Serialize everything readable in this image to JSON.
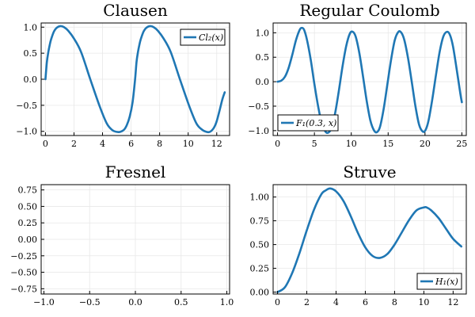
{
  "style": {
    "line_color": "#1f77b4"
  },
  "chart_data": [
    {
      "id": "clausen",
      "type": "line",
      "title": "Clausen",
      "xlim": [
        -0.3,
        12.9
      ],
      "ylim": [
        -1.08,
        1.08
      ],
      "xticks": [
        0,
        2,
        4,
        6,
        8,
        10,
        12
      ],
      "xtick_labels": [
        "0",
        "2",
        "4",
        "6",
        "8",
        "10",
        "12"
      ],
      "yticks": [
        -1.0,
        -0.5,
        0.0,
        0.5,
        1.0
      ],
      "ytick_labels": [
        "−1.0",
        "−0.5",
        "0.0",
        "0.5",
        "1.0"
      ],
      "legend": "top-right",
      "grid": true,
      "series": [
        {
          "name": "Cl₂(x)",
          "x": [
            0.0,
            0.1,
            0.2,
            0.3,
            0.4,
            0.6,
            0.8,
            1.05,
            1.3,
            1.6,
            2.0,
            2.5,
            3.14,
            3.8,
            4.3,
            4.7,
            5.0,
            5.24,
            5.5,
            5.7,
            5.9,
            6.1,
            6.28,
            6.38,
            6.48,
            6.58,
            6.68,
            6.88,
            7.08,
            7.33,
            7.58,
            7.88,
            8.28,
            8.78,
            9.42,
            10.08,
            10.58,
            10.98,
            11.28,
            11.52,
            11.78,
            11.98,
            12.18,
            12.4,
            12.56
          ],
          "y": [
            0.0,
            0.33,
            0.52,
            0.66,
            0.77,
            0.92,
            0.99,
            1.02,
            1.0,
            0.93,
            0.78,
            0.52,
            0.0,
            -0.52,
            -0.85,
            -0.98,
            -1.01,
            -1.01,
            -0.97,
            -0.88,
            -0.72,
            -0.45,
            0.0,
            0.33,
            0.52,
            0.66,
            0.77,
            0.92,
            0.99,
            1.02,
            1.0,
            0.93,
            0.78,
            0.52,
            0.0,
            -0.52,
            -0.85,
            -0.97,
            -1.01,
            -1.01,
            -0.94,
            -0.82,
            -0.62,
            -0.38,
            -0.25
          ]
        }
      ]
    },
    {
      "id": "coulomb",
      "type": "line",
      "title": "Regular Coulomb",
      "xlim": [
        -0.6,
        25.6
      ],
      "ylim": [
        -1.1,
        1.2
      ],
      "xticks": [
        0,
        5,
        10,
        15,
        20,
        25
      ],
      "xtick_labels": [
        "0",
        "5",
        "10",
        "15",
        "20",
        "25"
      ],
      "yticks": [
        -1.0,
        -0.5,
        0.0,
        0.5,
        1.0
      ],
      "ytick_labels": [
        "−1.0",
        "−0.5",
        "0.0",
        "0.5",
        "1.0"
      ],
      "legend": "bottom-left",
      "grid": true,
      "series": [
        {
          "name": "F₁(0.3, x)",
          "x": [
            0,
            0.5,
            1.0,
            1.5,
            2.0,
            2.5,
            3.0,
            3.3,
            3.6,
            4.0,
            4.5,
            5.0,
            5.5,
            6.0,
            6.5,
            6.9,
            7.3,
            7.8,
            8.3,
            8.8,
            9.3,
            9.8,
            10.2,
            10.6,
            11.1,
            11.6,
            12.1,
            12.6,
            13.1,
            13.5,
            13.9,
            14.4,
            14.9,
            15.4,
            15.9,
            16.4,
            16.8,
            17.2,
            17.7,
            18.2,
            18.7,
            19.2,
            19.7,
            20.1,
            20.5,
            21.0,
            21.5,
            22.0,
            22.5,
            23.0,
            23.4,
            23.8,
            24.3,
            24.8,
            25.0
          ],
          "y": [
            0.0,
            0.02,
            0.1,
            0.28,
            0.55,
            0.85,
            1.06,
            1.1,
            1.06,
            0.85,
            0.45,
            -0.05,
            -0.5,
            -0.85,
            -1.02,
            -1.04,
            -0.95,
            -0.65,
            -0.2,
            0.3,
            0.72,
            0.98,
            1.02,
            0.92,
            0.58,
            0.1,
            -0.4,
            -0.8,
            -1.0,
            -1.03,
            -0.92,
            -0.55,
            -0.05,
            0.45,
            0.85,
            1.02,
            1.0,
            0.85,
            0.48,
            0.0,
            -0.5,
            -0.88,
            -1.02,
            -0.98,
            -0.78,
            -0.35,
            0.15,
            0.62,
            0.93,
            1.02,
            0.95,
            0.72,
            0.25,
            -0.25,
            -0.42
          ]
        }
      ]
    },
    {
      "id": "fresnel",
      "type": "line",
      "title": "Fresnel",
      "xlim": [
        -1.03,
        1.03
      ],
      "ylim": [
        -0.83,
        0.83
      ],
      "xticks": [
        -1.0,
        -0.5,
        0.0,
        0.5,
        1.0
      ],
      "xtick_labels": [
        "−1.0",
        "−0.5",
        "0.0",
        "0.5",
        "1.0"
      ],
      "yticks": [
        -0.75,
        -0.5,
        -0.25,
        0.0,
        0.25,
        0.5,
        0.75
      ],
      "ytick_labels": [
        "−0.75",
        "−0.50",
        "−0.25",
        "0.00",
        "0.25",
        "0.50",
        "0.75"
      ],
      "legend": "none",
      "grid": true,
      "series": [
        {
          "name": "",
          "t_range": [
            -8.0,
            8.0
          ],
          "samples": 1600
        }
      ]
    },
    {
      "id": "struve",
      "type": "line",
      "title": "Struve",
      "xlim": [
        -0.3,
        12.9
      ],
      "ylim": [
        -0.02,
        1.13
      ],
      "xticks": [
        0,
        2,
        4,
        6,
        8,
        10,
        12
      ],
      "xtick_labels": [
        "0",
        "2",
        "4",
        "6",
        "8",
        "10",
        "12"
      ],
      "yticks": [
        0.0,
        0.25,
        0.5,
        0.75,
        1.0
      ],
      "ytick_labels": [
        "0.00",
        "0.25",
        "0.50",
        "0.75",
        "1.00"
      ],
      "legend": "bottom-right",
      "grid": true,
      "series": [
        {
          "name": "H₁(x)",
          "x": [
            0,
            0.5,
            1.0,
            1.5,
            2.0,
            2.5,
            3.0,
            3.3,
            3.6,
            4.0,
            4.5,
            5.0,
            5.5,
            6.0,
            6.5,
            7.0,
            7.5,
            8.0,
            8.5,
            9.0,
            9.5,
            10.0,
            10.2,
            10.5,
            11.0,
            11.5,
            12.0,
            12.56
          ],
          "y": [
            0.0,
            0.05,
            0.2,
            0.41,
            0.65,
            0.87,
            1.03,
            1.07,
            1.09,
            1.06,
            0.96,
            0.8,
            0.62,
            0.47,
            0.38,
            0.36,
            0.4,
            0.5,
            0.63,
            0.76,
            0.86,
            0.89,
            0.89,
            0.86,
            0.78,
            0.67,
            0.56,
            0.48
          ]
        }
      ]
    }
  ]
}
